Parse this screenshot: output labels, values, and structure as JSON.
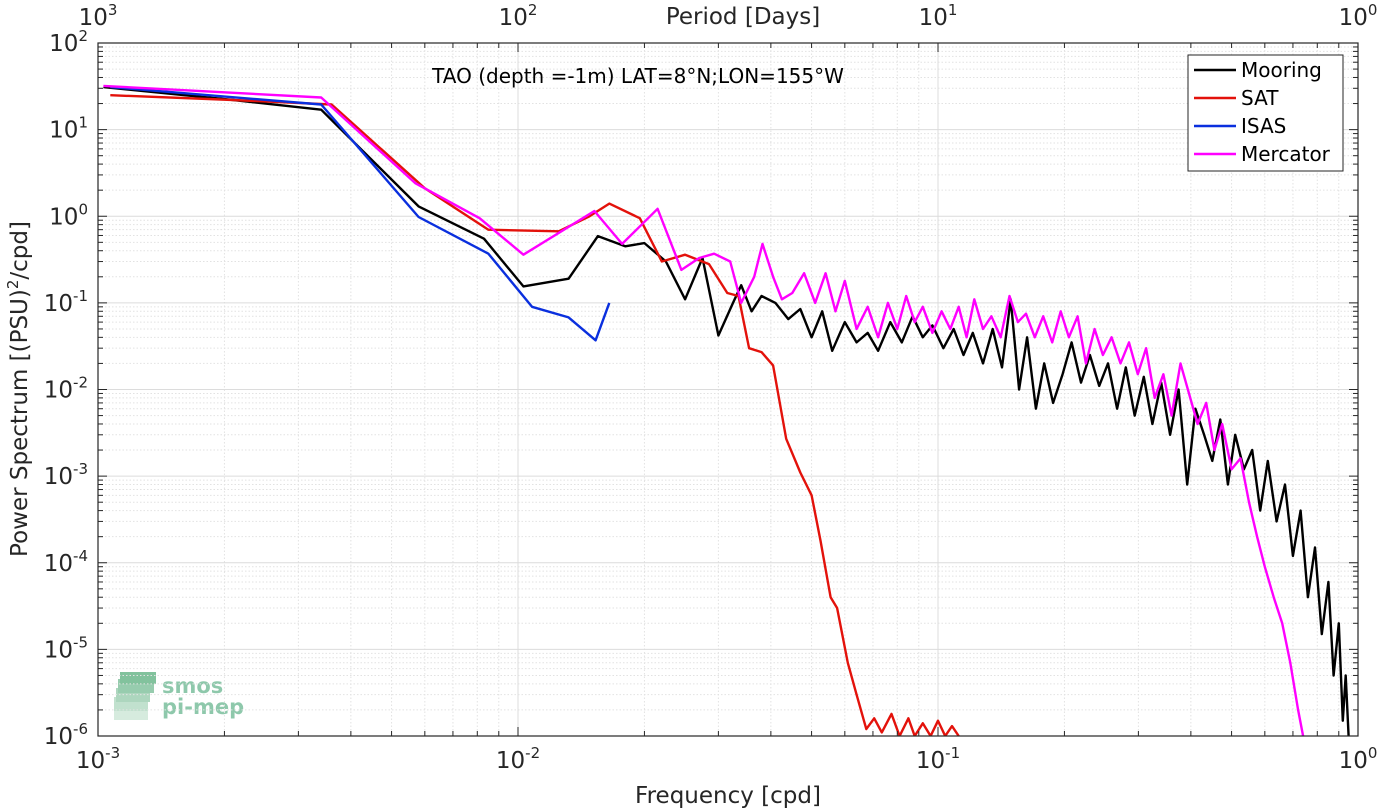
{
  "chart_data": {
    "type": "line",
    "scale": {
      "x": "log",
      "y": "log"
    },
    "title": "TAO (depth =-1m) LAT=8°N;LON=155°W",
    "xlabel": "Frequency [cpd]",
    "ylabel": "Power Spectrum [(PSU)²/cpd]",
    "ylabel_parts": {
      "main": "Power Spectrum [(PSU)",
      "sup": "2",
      "tail": "/cpd]"
    },
    "top_xlabel": "Period [Days]",
    "xlim": [
      0.001,
      1
    ],
    "ylim": [
      1e-06,
      100
    ],
    "grid": true,
    "legend_position": "top-right",
    "x_ticks": [
      {
        "value": 0.001,
        "base": "10",
        "exp": "-3"
      },
      {
        "value": 0.01,
        "base": "10",
        "exp": "-2"
      },
      {
        "value": 0.1,
        "base": "10",
        "exp": "-1"
      },
      {
        "value": 1,
        "base": "10",
        "exp": "0"
      }
    ],
    "top_ticks": [
      {
        "value": 0.001,
        "base": "10",
        "exp": "3"
      },
      {
        "value": 0.01,
        "base": "10",
        "exp": "2"
      },
      {
        "value": 0.1,
        "base": "10",
        "exp": "1"
      },
      {
        "value": 1,
        "base": "10",
        "exp": "0"
      }
    ],
    "y_ticks": [
      {
        "value": 100,
        "base": "10",
        "exp": "2"
      },
      {
        "value": 10,
        "base": "10",
        "exp": "1"
      },
      {
        "value": 1,
        "base": "10",
        "exp": "0"
      },
      {
        "value": 0.1,
        "base": "10",
        "exp": "-1"
      },
      {
        "value": 0.01,
        "base": "10",
        "exp": "-2"
      },
      {
        "value": 0.001,
        "base": "10",
        "exp": "-3"
      },
      {
        "value": 0.0001,
        "base": "10",
        "exp": "-4"
      },
      {
        "value": 1e-05,
        "base": "10",
        "exp": "-5"
      },
      {
        "value": 1e-06,
        "base": "10",
        "exp": "-6"
      }
    ],
    "series": [
      {
        "name": "Mooring",
        "color": "#000000",
        "points": [
          [
            0.00103,
            31
          ],
          [
            0.0021,
            22
          ],
          [
            0.0034,
            17
          ],
          [
            0.0058,
            1.3
          ],
          [
            0.0083,
            0.55
          ],
          [
            0.0103,
            0.155
          ],
          [
            0.0132,
            0.19
          ],
          [
            0.0155,
            0.59
          ],
          [
            0.018,
            0.45
          ],
          [
            0.02,
            0.49
          ],
          [
            0.0225,
            0.3
          ],
          [
            0.025,
            0.11
          ],
          [
            0.0275,
            0.33
          ],
          [
            0.03,
            0.042
          ],
          [
            0.0325,
            0.1
          ],
          [
            0.034,
            0.16
          ],
          [
            0.036,
            0.08
          ],
          [
            0.038,
            0.12
          ],
          [
            0.041,
            0.1
          ],
          [
            0.044,
            0.065
          ],
          [
            0.047,
            0.085
          ],
          [
            0.05,
            0.04
          ],
          [
            0.053,
            0.08
          ],
          [
            0.056,
            0.028
          ],
          [
            0.06,
            0.06
          ],
          [
            0.064,
            0.035
          ],
          [
            0.068,
            0.045
          ],
          [
            0.072,
            0.028
          ],
          [
            0.077,
            0.06
          ],
          [
            0.082,
            0.035
          ],
          [
            0.087,
            0.07
          ],
          [
            0.092,
            0.04
          ],
          [
            0.097,
            0.055
          ],
          [
            0.103,
            0.03
          ],
          [
            0.109,
            0.05
          ],
          [
            0.115,
            0.025
          ],
          [
            0.121,
            0.045
          ],
          [
            0.128,
            0.02
          ],
          [
            0.135,
            0.05
          ],
          [
            0.142,
            0.018
          ],
          [
            0.149,
            0.11
          ],
          [
            0.156,
            0.01
          ],
          [
            0.163,
            0.04
          ],
          [
            0.171,
            0.006
          ],
          [
            0.179,
            0.02
          ],
          [
            0.188,
            0.007
          ],
          [
            0.198,
            0.015
          ],
          [
            0.208,
            0.035
          ],
          [
            0.219,
            0.012
          ],
          [
            0.23,
            0.025
          ],
          [
            0.242,
            0.011
          ],
          [
            0.254,
            0.02
          ],
          [
            0.267,
            0.006
          ],
          [
            0.28,
            0.018
          ],
          [
            0.294,
            0.005
          ],
          [
            0.309,
            0.014
          ],
          [
            0.324,
            0.004
          ],
          [
            0.34,
            0.012
          ],
          [
            0.357,
            0.003
          ],
          [
            0.374,
            0.01
          ],
          [
            0.392,
            0.0008
          ],
          [
            0.41,
            0.006
          ],
          [
            0.43,
            0.003
          ],
          [
            0.45,
            0.0015
          ],
          [
            0.47,
            0.0045
          ],
          [
            0.49,
            0.0008
          ],
          [
            0.51,
            0.003
          ],
          [
            0.535,
            0.0012
          ],
          [
            0.56,
            0.002
          ],
          [
            0.585,
            0.0004
          ],
          [
            0.61,
            0.0015
          ],
          [
            0.64,
            0.0003
          ],
          [
            0.67,
            0.0008
          ],
          [
            0.7,
            0.00012
          ],
          [
            0.73,
            0.0004
          ],
          [
            0.76,
            4e-05
          ],
          [
            0.79,
            0.00015
          ],
          [
            0.82,
            1.5e-05
          ],
          [
            0.85,
            6e-05
          ],
          [
            0.875,
            5e-06
          ],
          [
            0.9,
            2e-05
          ],
          [
            0.92,
            1.5e-06
          ],
          [
            0.935,
            5e-06
          ],
          [
            0.95,
            1e-06
          ]
        ]
      },
      {
        "name": "SAT",
        "color": "#e3120b",
        "points": [
          [
            0.00107,
            25
          ],
          [
            0.0021,
            22
          ],
          [
            0.0036,
            19.5
          ],
          [
            0.006,
            2.1
          ],
          [
            0.0085,
            0.7
          ],
          [
            0.0125,
            0.67
          ],
          [
            0.0148,
            1.0
          ],
          [
            0.0165,
            1.4
          ],
          [
            0.0195,
            0.95
          ],
          [
            0.022,
            0.3
          ],
          [
            0.025,
            0.36
          ],
          [
            0.0285,
            0.28
          ],
          [
            0.0315,
            0.13
          ],
          [
            0.0335,
            0.12
          ],
          [
            0.0355,
            0.03
          ],
          [
            0.038,
            0.027
          ],
          [
            0.0405,
            0.019
          ],
          [
            0.0435,
            0.0027
          ],
          [
            0.047,
            0.0011
          ],
          [
            0.05,
            0.0006
          ],
          [
            0.0525,
            0.00018
          ],
          [
            0.0555,
            4e-05
          ],
          [
            0.0575,
            3e-05
          ],
          [
            0.061,
            7e-06
          ],
          [
            0.064,
            3e-06
          ],
          [
            0.0675,
            1.2e-06
          ],
          [
            0.0705,
            1.6e-06
          ],
          [
            0.0735,
            1.1e-06
          ],
          [
            0.0775,
            1.8e-06
          ],
          [
            0.081,
            1e-06
          ],
          [
            0.085,
            1.6e-06
          ],
          [
            0.088,
            1e-06
          ],
          [
            0.092,
            1.4e-06
          ],
          [
            0.096,
            1e-06
          ],
          [
            0.1,
            1.5e-06
          ],
          [
            0.104,
            1e-06
          ],
          [
            0.108,
            1.3e-06
          ],
          [
            0.112,
            1e-06
          ]
        ]
      },
      {
        "name": "ISAS",
        "color": "#0a2fde",
        "points": [
          [
            0.00107,
            31
          ],
          [
            0.0034,
            19.5
          ],
          [
            0.0058,
            0.98
          ],
          [
            0.0085,
            0.37
          ],
          [
            0.0108,
            0.09
          ],
          [
            0.0132,
            0.068
          ],
          [
            0.0153,
            0.037
          ],
          [
            0.0165,
            0.1
          ]
        ]
      },
      {
        "name": "Mercator",
        "color": "#ff00ff",
        "points": [
          [
            0.00103,
            32
          ],
          [
            0.0034,
            23.5
          ],
          [
            0.0057,
            2.4
          ],
          [
            0.0081,
            0.95
          ],
          [
            0.0103,
            0.36
          ],
          [
            0.0152,
            1.15
          ],
          [
            0.0177,
            0.48
          ],
          [
            0.0215,
            1.22
          ],
          [
            0.0245,
            0.24
          ],
          [
            0.027,
            0.33
          ],
          [
            0.0293,
            0.37
          ],
          [
            0.032,
            0.3
          ],
          [
            0.034,
            0.1
          ],
          [
            0.0365,
            0.2
          ],
          [
            0.0382,
            0.48
          ],
          [
            0.0405,
            0.2
          ],
          [
            0.0425,
            0.11
          ],
          [
            0.045,
            0.13
          ],
          [
            0.048,
            0.22
          ],
          [
            0.051,
            0.1
          ],
          [
            0.054,
            0.22
          ],
          [
            0.057,
            0.08
          ],
          [
            0.06,
            0.18
          ],
          [
            0.064,
            0.05
          ],
          [
            0.068,
            0.09
          ],
          [
            0.072,
            0.04
          ],
          [
            0.076,
            0.1
          ],
          [
            0.08,
            0.05
          ],
          [
            0.084,
            0.12
          ],
          [
            0.088,
            0.06
          ],
          [
            0.092,
            0.09
          ],
          [
            0.097,
            0.045
          ],
          [
            0.102,
            0.08
          ],
          [
            0.107,
            0.05
          ],
          [
            0.112,
            0.09
          ],
          [
            0.117,
            0.04
          ],
          [
            0.122,
            0.11
          ],
          [
            0.128,
            0.05
          ],
          [
            0.134,
            0.07
          ],
          [
            0.141,
            0.04
          ],
          [
            0.148,
            0.12
          ],
          [
            0.155,
            0.06
          ],
          [
            0.162,
            0.075
          ],
          [
            0.17,
            0.04
          ],
          [
            0.178,
            0.07
          ],
          [
            0.187,
            0.035
          ],
          [
            0.196,
            0.08
          ],
          [
            0.205,
            0.04
          ],
          [
            0.215,
            0.07
          ],
          [
            0.225,
            0.02
          ],
          [
            0.236,
            0.05
          ],
          [
            0.247,
            0.025
          ],
          [
            0.259,
            0.04
          ],
          [
            0.272,
            0.02
          ],
          [
            0.285,
            0.035
          ],
          [
            0.299,
            0.015
          ],
          [
            0.313,
            0.03
          ],
          [
            0.328,
            0.008
          ],
          [
            0.344,
            0.015
          ],
          [
            0.36,
            0.005
          ],
          [
            0.378,
            0.02
          ],
          [
            0.396,
            0.009
          ],
          [
            0.415,
            0.004
          ],
          [
            0.435,
            0.007
          ],
          [
            0.455,
            0.002
          ],
          [
            0.475,
            0.004
          ],
          [
            0.5,
            0.0012
          ],
          [
            0.525,
            0.0016
          ],
          [
            0.55,
            0.0005
          ],
          [
            0.575,
            0.0002
          ],
          [
            0.6,
            9e-05
          ],
          [
            0.63,
            4e-05
          ],
          [
            0.66,
            2e-05
          ],
          [
            0.69,
            7e-06
          ],
          [
            0.72,
            2e-06
          ],
          [
            0.74,
            1e-06
          ]
        ]
      }
    ]
  },
  "logo": {
    "line1": "smos",
    "line2": "pi-mep"
  }
}
